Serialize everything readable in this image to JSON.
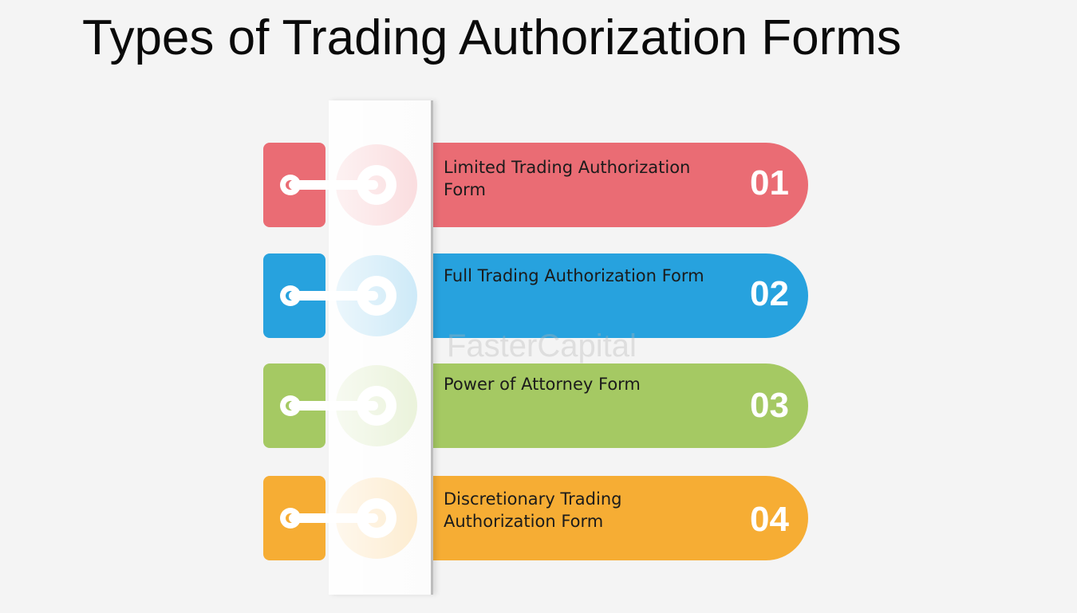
{
  "title": "Types of Trading Authorization Forms",
  "watermark": "FasterCapital",
  "items": [
    {
      "number": "01",
      "label": "Limited Trading Authorization Form",
      "color": "#ea6c74"
    },
    {
      "number": "02",
      "label": "Full Trading Authorization Form",
      "color": "#27a2de"
    },
    {
      "number": "03",
      "label": "Power of Attorney Form",
      "color": "#a5c963"
    },
    {
      "number": "04",
      "label": "Discretionary Trading Authorization Form",
      "color": "#f6ad34"
    }
  ]
}
